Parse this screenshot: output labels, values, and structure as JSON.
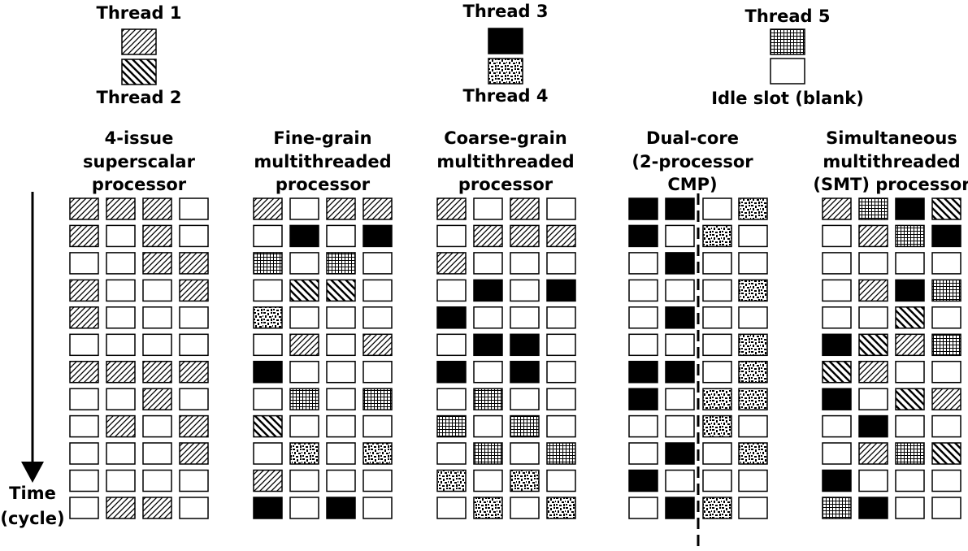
{
  "legend": [
    {
      "pattern": "t1",
      "label": "Thread 1"
    },
    {
      "pattern": "t2",
      "label": "Thread 2"
    },
    {
      "pattern": "t3",
      "label": "Thread 3"
    },
    {
      "pattern": "t4",
      "label": "Thread 4"
    },
    {
      "pattern": "t5",
      "label": "Thread 5"
    },
    {
      "pattern": "idle",
      "label": "Idle slot (blank)"
    }
  ],
  "time_axis": {
    "line1": "Time",
    "line2": "(cycle)"
  },
  "panels": [
    {
      "title": [
        "4-issue",
        "superscalar",
        "processor"
      ],
      "rows": [
        [
          "t1",
          "t1",
          "t1",
          "idle"
        ],
        [
          "t1",
          "idle",
          "t1",
          "idle"
        ],
        [
          "idle",
          "idle",
          "t1",
          "t1"
        ],
        [
          "t1",
          "idle",
          "idle",
          "t1"
        ],
        [
          "t1",
          "idle",
          "idle",
          "idle"
        ],
        [
          "idle",
          "idle",
          "idle",
          "idle"
        ],
        [
          "t1",
          "t1",
          "t1",
          "t1"
        ],
        [
          "idle",
          "idle",
          "t1",
          "idle"
        ],
        [
          "idle",
          "t1",
          "idle",
          "t1"
        ],
        [
          "idle",
          "idle",
          "idle",
          "t1"
        ],
        [
          "idle",
          "idle",
          "idle",
          "idle"
        ],
        [
          "idle",
          "t1",
          "t1",
          "idle"
        ]
      ]
    },
    {
      "title": [
        "Fine-grain",
        "multithreaded",
        "processor"
      ],
      "rows": [
        [
          "t1",
          "idle",
          "t1",
          "t1"
        ],
        [
          "idle",
          "t3",
          "idle",
          "t3"
        ],
        [
          "t5",
          "idle",
          "t5",
          "idle"
        ],
        [
          "idle",
          "t2",
          "t2",
          "idle"
        ],
        [
          "t4",
          "idle",
          "idle",
          "idle"
        ],
        [
          "idle",
          "t1",
          "idle",
          "t1"
        ],
        [
          "t3",
          "idle",
          "idle",
          "idle"
        ],
        [
          "idle",
          "t5",
          "idle",
          "t5"
        ],
        [
          "t2",
          "idle",
          "idle",
          "idle"
        ],
        [
          "idle",
          "t4",
          "idle",
          "t4"
        ],
        [
          "t1",
          "idle",
          "idle",
          "idle"
        ],
        [
          "t3",
          "idle",
          "t3",
          "idle"
        ]
      ]
    },
    {
      "title": [
        "Coarse-grain",
        "multithreaded",
        "processor"
      ],
      "rows": [
        [
          "t1",
          "idle",
          "t1",
          "idle"
        ],
        [
          "idle",
          "t1",
          "t1",
          "t1"
        ],
        [
          "t1",
          "idle",
          "idle",
          "idle"
        ],
        [
          "idle",
          "t3",
          "idle",
          "t3"
        ],
        [
          "t3",
          "idle",
          "idle",
          "idle"
        ],
        [
          "idle",
          "t3",
          "t3",
          "idle"
        ],
        [
          "t3",
          "idle",
          "t3",
          "idle"
        ],
        [
          "idle",
          "t5",
          "idle",
          "idle"
        ],
        [
          "t5",
          "idle",
          "t5",
          "idle"
        ],
        [
          "idle",
          "t5",
          "idle",
          "t5"
        ],
        [
          "t4",
          "idle",
          "t4",
          "idle"
        ],
        [
          "idle",
          "t4",
          "idle",
          "t4"
        ]
      ]
    },
    {
      "title": [
        "Dual-core",
        "(2-processor",
        "CMP)"
      ],
      "split": true,
      "rows": [
        [
          "t3",
          "t3",
          "idle",
          "t4"
        ],
        [
          "t3",
          "idle",
          "t4",
          "idle"
        ],
        [
          "idle",
          "t3",
          "idle",
          "idle"
        ],
        [
          "idle",
          "idle",
          "idle",
          "t4"
        ],
        [
          "idle",
          "t3",
          "idle",
          "idle"
        ],
        [
          "idle",
          "idle",
          "idle",
          "t4"
        ],
        [
          "t3",
          "t3",
          "idle",
          "t4"
        ],
        [
          "t3",
          "idle",
          "t4",
          "t4"
        ],
        [
          "idle",
          "idle",
          "t4",
          "idle"
        ],
        [
          "idle",
          "t3",
          "idle",
          "t4"
        ],
        [
          "t3",
          "idle",
          "idle",
          "idle"
        ],
        [
          "idle",
          "t3",
          "t4",
          "idle"
        ]
      ]
    },
    {
      "title": [
        "Simultaneous",
        "multithreaded",
        "(SMT) processor"
      ],
      "rows": [
        [
          "t1",
          "t5",
          "t3",
          "t2"
        ],
        [
          "idle",
          "t1",
          "t5",
          "t3"
        ],
        [
          "idle",
          "idle",
          "idle",
          "idle"
        ],
        [
          "idle",
          "t1",
          "t3",
          "t5"
        ],
        [
          "idle",
          "idle",
          "t2",
          "idle"
        ],
        [
          "t3",
          "t2",
          "t1",
          "t5"
        ],
        [
          "t2",
          "t1",
          "idle",
          "idle"
        ],
        [
          "t3",
          "idle",
          "t2",
          "t1"
        ],
        [
          "idle",
          "t3",
          "idle",
          "idle"
        ],
        [
          "idle",
          "t1",
          "t5",
          "t2"
        ],
        [
          "t3",
          "idle",
          "idle",
          "idle"
        ],
        [
          "t5",
          "t3",
          "idle",
          "idle"
        ]
      ]
    }
  ]
}
